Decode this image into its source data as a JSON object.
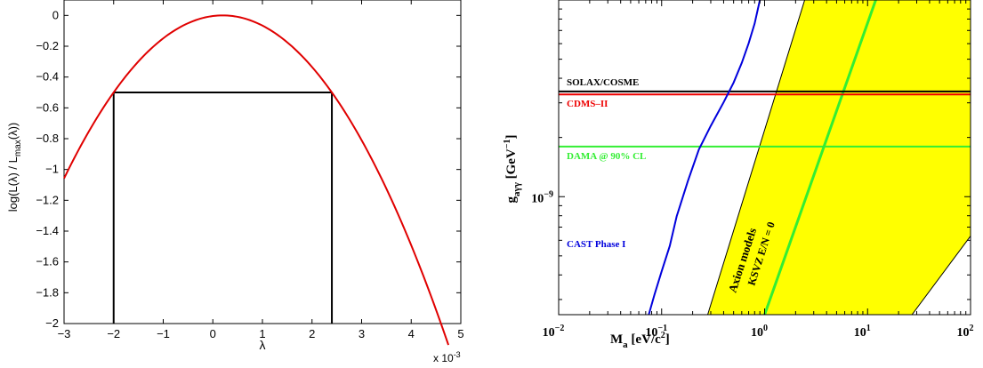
{
  "chart_data": [
    {
      "type": "line",
      "xlabel": "λ",
      "ylabel": "log(L(λ) / L_max(λ))",
      "x_multiplier_label": "x 10",
      "x_multiplier_exp": "-3",
      "xlim": [
        -3,
        5
      ],
      "ylim": [
        -2,
        0.1
      ],
      "grid": false,
      "x_ticks": [
        "−3",
        "−2",
        "−1",
        "0",
        "1",
        "2",
        "3",
        "4",
        "5"
      ],
      "y_ticks": [
        "0",
        "−0.2",
        "−0.4",
        "−0.6",
        "−0.8",
        "−1",
        "−1.2",
        "−1.4",
        "−1.6",
        "−1.8",
        "−2"
      ],
      "series": [
        {
          "color": "#e00000",
          "kind": "parabola",
          "peak_x": 0.2,
          "peak_y": 0.0,
          "x_range": [
            -3,
            4.75
          ],
          "points": [
            [
              -3,
              -1.02
            ],
            [
              -2,
              -0.5
            ],
            [
              -1,
              -0.145
            ],
            [
              0.2,
              0.0
            ],
            [
              1,
              -0.06
            ],
            [
              2.4,
              -0.5
            ],
            [
              3,
              -0.82
            ],
            [
              4,
              -1.45
            ],
            [
              4.75,
              -2.0
            ]
          ]
        }
      ],
      "box": {
        "color": "#000000",
        "level": -0.5,
        "x_low": -2.0,
        "x_high": 2.4,
        "y_bottom": -2.0
      }
    },
    {
      "type": "line",
      "xscale": "log",
      "yscale": "log",
      "xlim": [
        0.01,
        100
      ],
      "ylim_decades": [
        -9.6,
        -8.0
      ],
      "xlabel_main": "M",
      "xlabel_sub": "a",
      "xlabel_unit": " [eV/c",
      "xlabel_unit_sup": "2",
      "xlabel_unit_end": "]",
      "ylabel_main": "g",
      "ylabel_sub": "aγγ",
      "ylabel_unit": " [GeV",
      "ylabel_unit_sup": "−1",
      "ylabel_unit_end": "]",
      "x_ticks": [
        {
          "base": "10",
          "exp": "−2",
          "value": 0.01
        },
        {
          "base": "10",
          "exp": "−1",
          "value": 0.1
        },
        {
          "base": "10",
          "exp": "0",
          "value": 1
        },
        {
          "base": "10",
          "exp": "1",
          "value": 10
        },
        {
          "base": "10",
          "exp": "2",
          "value": 100
        }
      ],
      "y_ticks": [
        {
          "base": "10",
          "exp": "−9",
          "log": -9
        }
      ],
      "band": {
        "label": "Axion models",
        "color": "#ffff00",
        "left_edge": [
          [
            0.28,
            -9.6
          ],
          [
            2.45,
            -8.0
          ]
        ],
        "right_edge": [
          [
            27,
            -9.6
          ],
          [
            100,
            -9.2
          ],
          [
            100,
            -8.0
          ]
        ]
      },
      "series": [
        {
          "name": "KSVZ E/N = 0",
          "color": "#33ee33",
          "kind": "diagonal",
          "points": [
            [
              1.0,
              -9.6
            ],
            [
              12.0,
              -8.0
            ]
          ]
        },
        {
          "name": "SOLAX/COSME",
          "color": "#000000",
          "kind": "horizontal",
          "log_y": -8.465
        },
        {
          "name": "CDMS–II",
          "color": "#ee0000",
          "kind": "horizontal",
          "log_y": -8.48
        },
        {
          "name": "DAMA @ 90% CL",
          "color": "#33ee33",
          "kind": "horizontal",
          "log_y": -8.745
        },
        {
          "name": "CAST Phase I",
          "color": "#0000dd",
          "kind": "curve",
          "points": [
            [
              0.075,
              -9.6
            ],
            [
              0.085,
              -9.5
            ],
            [
              0.1,
              -9.38
            ],
            [
              0.12,
              -9.25
            ],
            [
              0.14,
              -9.1
            ],
            [
              0.18,
              -8.92
            ],
            [
              0.23,
              -8.76
            ],
            [
              0.3,
              -8.64
            ],
            [
              0.4,
              -8.52
            ],
            [
              0.5,
              -8.42
            ],
            [
              0.6,
              -8.32
            ],
            [
              0.7,
              -8.22
            ],
            [
              0.8,
              -8.12
            ],
            [
              0.9,
              -8.0
            ]
          ]
        }
      ]
    }
  ]
}
